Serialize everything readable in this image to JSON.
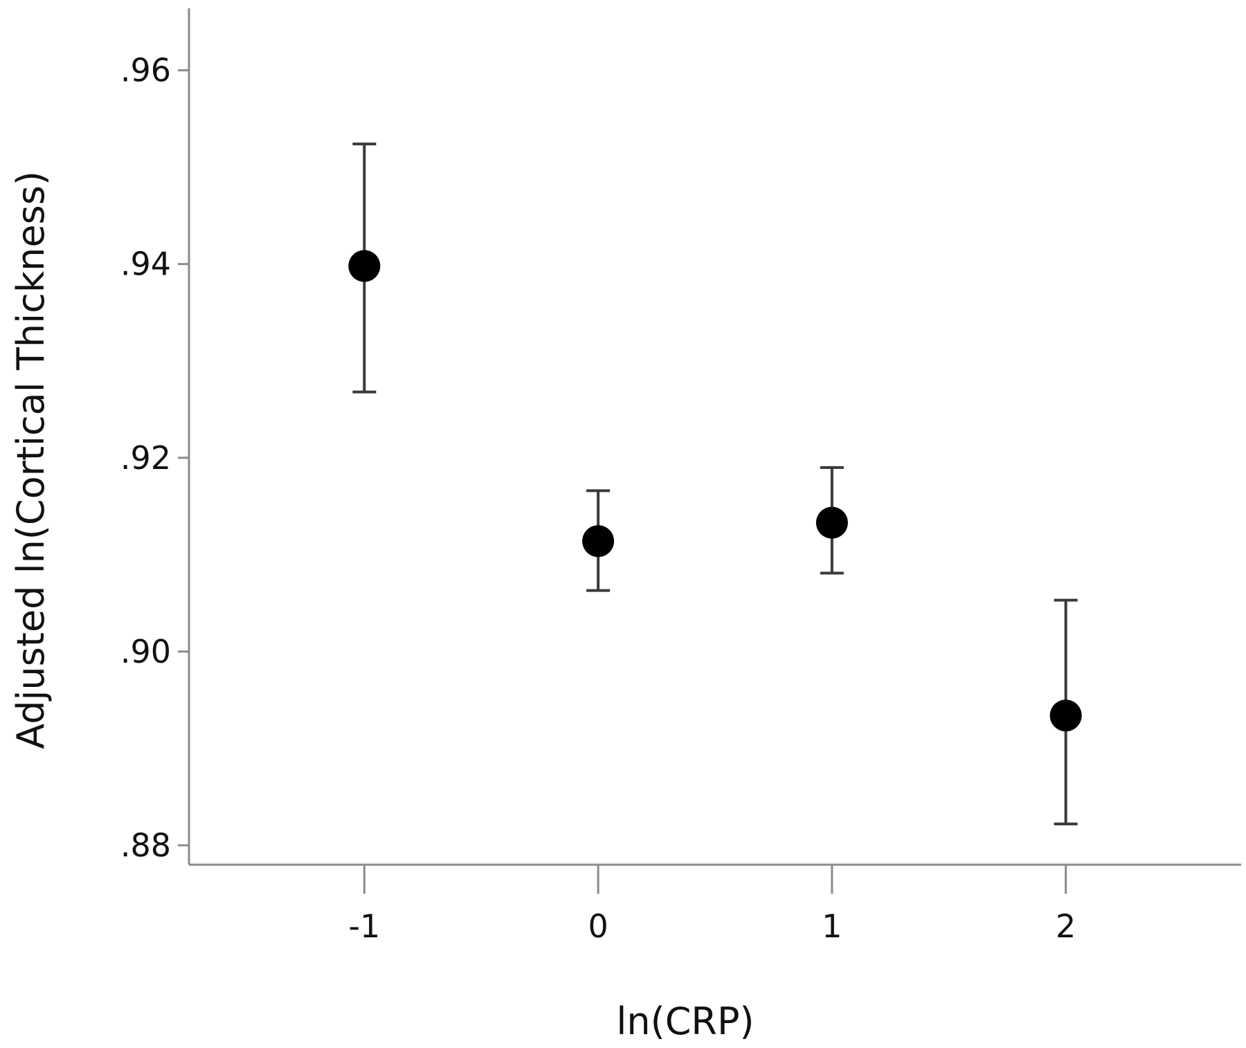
{
  "chart_data": {
    "type": "scatter",
    "title": "",
    "xlabel": "ln(CRP)",
    "ylabel": "Adjusted ln(Cortical Thickness)",
    "xlim": [
      -1.75,
      2.75
    ],
    "ylim": [
      0.878,
      0.9664
    ],
    "x_ticks": [
      -1,
      0,
      1,
      2
    ],
    "x_tick_labels": [
      "-1",
      "0",
      "1",
      "2"
    ],
    "y_ticks": [
      0.88,
      0.9,
      0.92,
      0.94,
      0.96
    ],
    "y_tick_labels": [
      ".88",
      ".90",
      ".92",
      ".94",
      ".96"
    ],
    "grid": false,
    "legend": "none",
    "points": [
      {
        "x": -1,
        "y": 0.9398,
        "lower": 0.9268,
        "upper": 0.9524
      },
      {
        "x": 0,
        "y": 0.9114,
        "lower": 0.9063,
        "upper": 0.9166
      },
      {
        "x": 1,
        "y": 0.9133,
        "lower": 0.9081,
        "upper": 0.919
      },
      {
        "x": 2,
        "y": 0.8934,
        "lower": 0.8822,
        "upper": 0.9053
      }
    ],
    "colors": {
      "point": "#000000",
      "error_bar": "#3a3a3a",
      "axis": "#8a8a8a"
    }
  }
}
